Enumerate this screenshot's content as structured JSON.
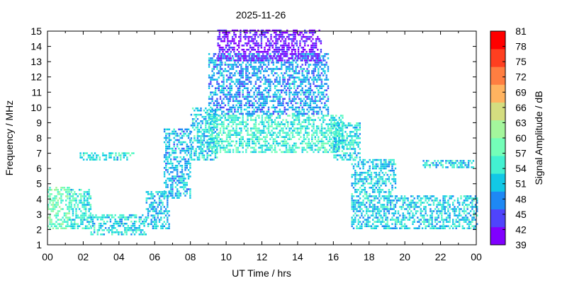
{
  "chart_data": {
    "type": "heatmap",
    "title": "2025-11-26",
    "xlabel": "UT Time / hrs",
    "ylabel": "Frequency / MHz",
    "xlim": [
      0,
      24
    ],
    "ylim": [
      1,
      15
    ],
    "x_ticks": [
      "00",
      "02",
      "04",
      "06",
      "08",
      "10",
      "12",
      "14",
      "16",
      "18",
      "20",
      "22",
      "00"
    ],
    "y_ticks": [
      "1",
      "2",
      "3",
      "4",
      "5",
      "6",
      "7",
      "8",
      "9",
      "10",
      "11",
      "12",
      "13",
      "14",
      "15"
    ],
    "colorbar": {
      "label": "Signal Amplitude / dB",
      "range": [
        39,
        81
      ],
      "ticks": [
        "39",
        "42",
        "45",
        "48",
        "51",
        "54",
        "57",
        "60",
        "63",
        "66",
        "69",
        "72",
        "75",
        "78",
        "81"
      ],
      "colors": [
        "#8000ff",
        "#4f44fc",
        "#1e88f4",
        "#12c8e6",
        "#43f1d1",
        "#74feb8",
        "#a4f69c",
        "#d4dd80",
        "#ffb360",
        "#ff7e41",
        "#ff3f20",
        "#ff0000"
      ]
    },
    "regions": [
      {
        "t": [
          0.0,
          1.2
        ],
        "f": [
          2.0,
          4.8
        ],
        "level": 58
      },
      {
        "t": [
          1.2,
          2.4
        ],
        "f": [
          2.0,
          4.6
        ],
        "level": 54
      },
      {
        "t": [
          2.4,
          5.5
        ],
        "f": [
          1.6,
          3.0
        ],
        "level": 53
      },
      {
        "t": [
          5.5,
          6.8
        ],
        "f": [
          2.0,
          4.5
        ],
        "level": 51
      },
      {
        "t": [
          6.5,
          8.0
        ],
        "f": [
          4.0,
          8.5
        ],
        "level": 50
      },
      {
        "t": [
          8.0,
          9.5
        ],
        "f": [
          6.5,
          10.0
        ],
        "level": 52
      },
      {
        "t": [
          9.0,
          16.5
        ],
        "f": [
          7.0,
          9.5
        ],
        "level": 55
      },
      {
        "t": [
          9.0,
          15.7
        ],
        "f": [
          9.5,
          13.5
        ],
        "level": 49
      },
      {
        "t": [
          9.5,
          15.3
        ],
        "f": [
          13.0,
          15.0
        ],
        "level": 41
      },
      {
        "t": [
          16.0,
          17.5
        ],
        "f": [
          6.5,
          9.0
        ],
        "level": 53
      },
      {
        "t": [
          17.0,
          19.5
        ],
        "f": [
          2.0,
          6.5
        ],
        "level": 52
      },
      {
        "t": [
          19.5,
          24.0
        ],
        "f": [
          2.0,
          4.2
        ],
        "level": 52
      },
      {
        "t": [
          1.8,
          4.8
        ],
        "f": [
          6.5,
          7.0
        ],
        "level": 54
      },
      {
        "t": [
          21.0,
          23.8
        ],
        "f": [
          6.0,
          6.5
        ],
        "level": 52
      }
    ]
  }
}
